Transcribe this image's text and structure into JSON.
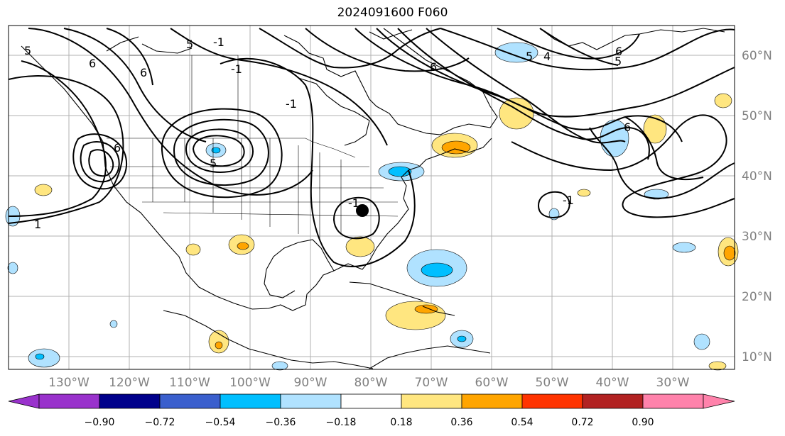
{
  "title": "2024091600 F060",
  "map": {
    "lon_labels": [
      "130°W",
      "120°W",
      "110°W",
      "100°W",
      "90°W",
      "80°W",
      "70°W",
      "60°W",
      "50°W",
      "40°W",
      "30°W"
    ],
    "lat_labels": [
      "60°N",
      "50°N",
      "40°N",
      "30°N",
      "20°N",
      "10°N"
    ],
    "label_color": "#808080",
    "grid_color": "#b0b0b0",
    "contour_labels": [
      "5",
      "6",
      "-1",
      "5",
      "6",
      "-1",
      "6",
      "5",
      "6",
      "5",
      "5",
      "4",
      "-1",
      "1",
      "-1",
      "-1",
      "6",
      "6"
    ],
    "storm_marker": "storm-center-dot"
  },
  "colorbar": {
    "tick_labels": [
      "−0.90",
      "−0.72",
      "−0.54",
      "−0.36",
      "−0.18",
      "0.18",
      "0.36",
      "0.54",
      "0.72",
      "0.90"
    ],
    "colors": [
      "#9932cc",
      "#00008b",
      "#3a5fcd",
      "#00bfff",
      "#b0e2ff",
      "#ffffff",
      "#ffe680",
      "#ffa500",
      "#ff3300",
      "#b22222",
      "#ff82ab"
    ],
    "under_color": "#9932cc",
    "over_color": "#ff82ab"
  }
}
